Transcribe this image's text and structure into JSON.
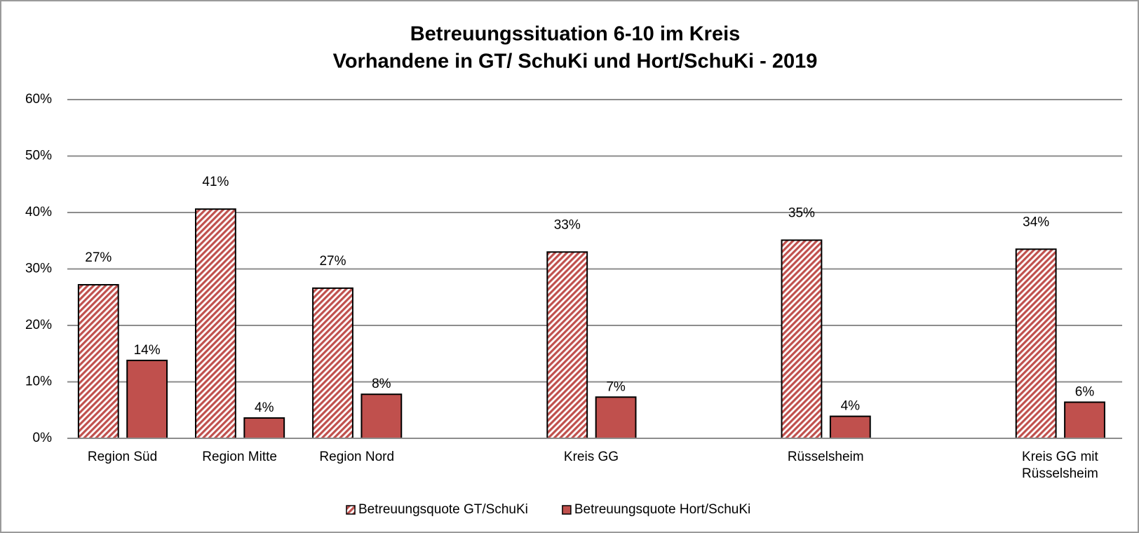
{
  "chart_data": {
    "type": "bar",
    "title": "Betreuungssituation 6-10 im Kreis",
    "subtitle": "Vorhandene in GT/ SchuKi und Hort/SchuKi - 2019",
    "categories": [
      "Region Süd",
      "Region Mitte",
      "Region Nord",
      null,
      "Kreis GG",
      null,
      "Rüsselsheim",
      null,
      "Kreis GG mit Rüsselsheim"
    ],
    "series": [
      {
        "name": "Betreuungsquote GT/SchuKi",
        "color": "#c0504d",
        "pattern": "hatch",
        "values": [
          27.2,
          40.6,
          26.6,
          null,
          33.0,
          null,
          35.1,
          null,
          33.5
        ],
        "value_labels": [
          "27%",
          "41%",
          "27%",
          null,
          "33%",
          null,
          "35%",
          null,
          "34%"
        ]
      },
      {
        "name": "Betreuungsquote Hort/SchuKi",
        "color": "#c0504d",
        "pattern": "solid",
        "values": [
          13.8,
          3.6,
          7.8,
          null,
          7.3,
          null,
          3.9,
          null,
          6.4
        ],
        "value_labels": [
          "14%",
          "4%",
          "8%",
          null,
          "7%",
          null,
          "4%",
          null,
          "6%"
        ]
      }
    ],
    "ylim": [
      0,
      60
    ],
    "yticks": [
      {
        "value": 0,
        "label": "0%"
      },
      {
        "value": 10,
        "label": "10%"
      },
      {
        "value": 20,
        "label": "20%"
      },
      {
        "value": 30,
        "label": "30%"
      },
      {
        "value": 40,
        "label": "40%"
      },
      {
        "value": 50,
        "label": "50%"
      },
      {
        "value": 60,
        "label": "60%"
      }
    ],
    "grid": true,
    "legend": "bottom"
  }
}
